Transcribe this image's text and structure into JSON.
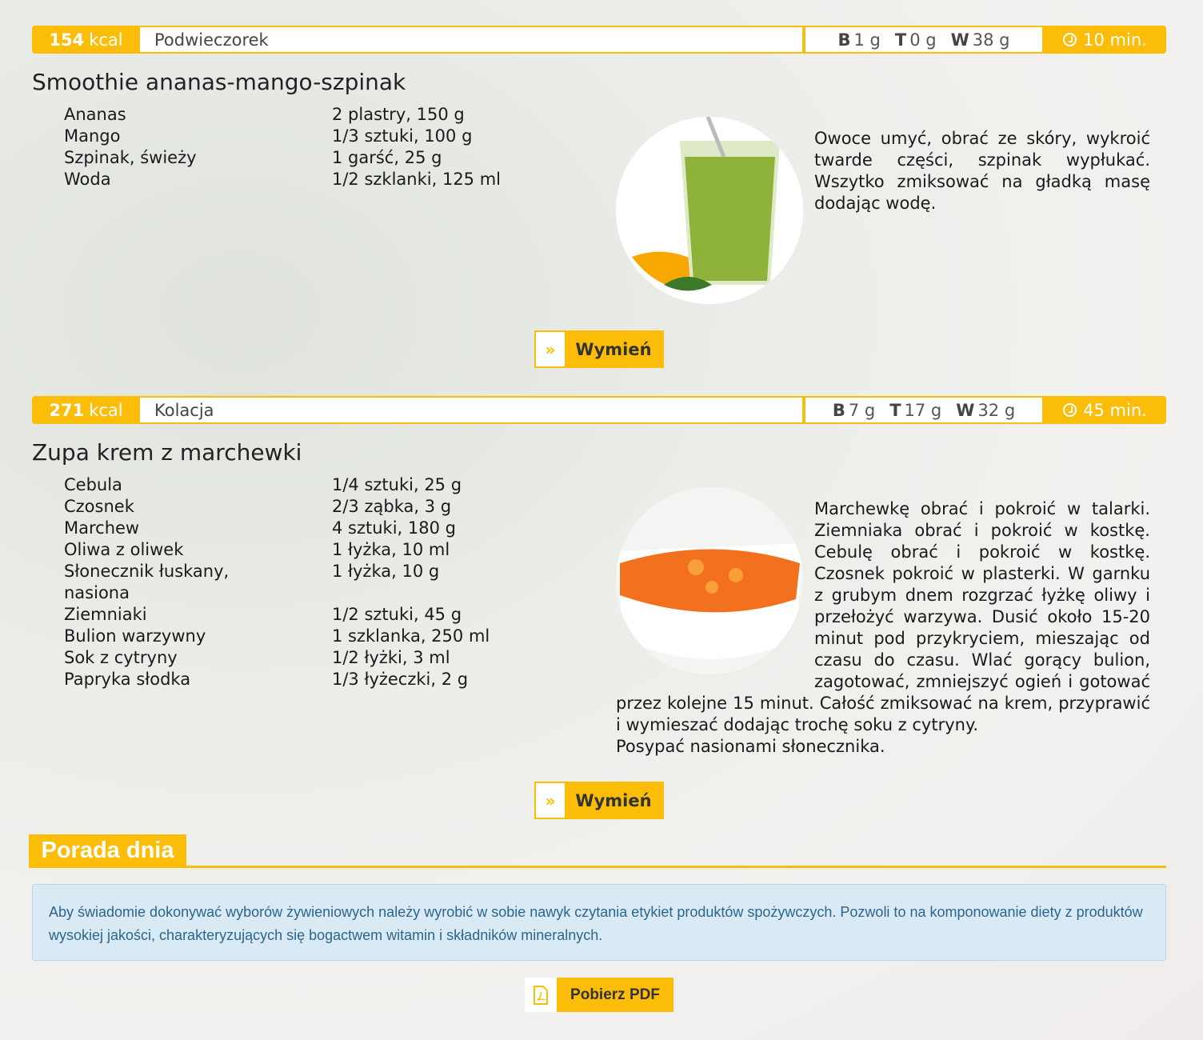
{
  "meals": [
    {
      "kcal_value": "154",
      "kcal_unit": "kcal",
      "category": "Podwieczorek",
      "macros": [
        {
          "k": "B",
          "v": "1 g"
        },
        {
          "k": "T",
          "v": "0 g"
        },
        {
          "k": "W",
          "v": "38 g"
        }
      ],
      "time": "10 min.",
      "title": "Smoothie ananas-mango-szpinak",
      "ingredients": [
        {
          "name": "Ananas",
          "amount": "2 plastry, 150 g"
        },
        {
          "name": "Mango",
          "amount": "1/3 sztuki, 100 g"
        },
        {
          "name": "Szpinak, świeży",
          "amount": "1 garść, 25 g"
        },
        {
          "name": "Woda",
          "amount": "1/2 szklanki, 125 ml"
        }
      ],
      "description": "Owoce umyć, obrać ze skóry, wykroić twarde części, szpinak wypłukać. Wszytko zmiksować na gładką masę dodając wodę.",
      "button": "Wymień"
    },
    {
      "kcal_value": "271",
      "kcal_unit": "kcal",
      "category": "Kolacja",
      "macros": [
        {
          "k": "B",
          "v": "7 g"
        },
        {
          "k": "T",
          "v": "17 g"
        },
        {
          "k": "W",
          "v": "32 g"
        }
      ],
      "time": "45 min.",
      "title": "Zupa krem z marchewki",
      "ingredients": [
        {
          "name": "Cebula",
          "amount": "1/4 sztuki, 25 g"
        },
        {
          "name": "Czosnek",
          "amount": "2/3 ząbka, 3 g"
        },
        {
          "name": "Marchew",
          "amount": "4 sztuki, 180 g"
        },
        {
          "name": "Oliwa z oliwek",
          "amount": "1 łyżka, 10 ml"
        },
        {
          "name": "Słonecznik łuskany, nasiona",
          "amount": "1 łyżka, 10 g"
        },
        {
          "name": "Ziemniaki",
          "amount": "1/2 sztuki, 45 g"
        },
        {
          "name": "Bulion warzywny",
          "amount": "1 szklanka, 250 ml"
        },
        {
          "name": "Sok z cytryny",
          "amount": "1/2 łyżki, 3 ml"
        },
        {
          "name": "Papryka słodka",
          "amount": "1/3 łyżeczki, 2 g"
        }
      ],
      "description": "Marchewkę obrać i pokroić w talarki. Ziemniaka obrać i pokroić w kostkę. Cebulę obrać i pokroić w kostkę. Czosnek pokroić w plasterki. W garnku z grubym dnem rozgrzać łyżkę oliwy i przełożyć warzywa. Dusić około 15-20 minut pod przykryciem, mieszając od czasu do czasu. Wlać gorący bulion, zagotować, zmniejszyć ogień i gotować przez kolejne 15 minut. Całość zmiksować na krem, przyprawić i wymieszać dodając trochę soku z cytryny.",
      "description_extra": "Posypać nasionami słonecznika.",
      "button": "Wymień"
    }
  ],
  "tip": {
    "title": "Porada dnia",
    "text": "Aby świadomie dokonywać wyborów żywieniowych należy wyrobić w sobie nawyk czytania etykiet produktów spożywczych. Pozwoli to na komponowanie diety z produktów wysokiej jakości, charakteryzujących się bogactwem witamin i składników mineralnych."
  },
  "pdf_button": "Pobierz PDF",
  "colors": {
    "accent": "#fbbd08",
    "info_bg": "#d9eaf5",
    "info_text": "#2b6590"
  }
}
